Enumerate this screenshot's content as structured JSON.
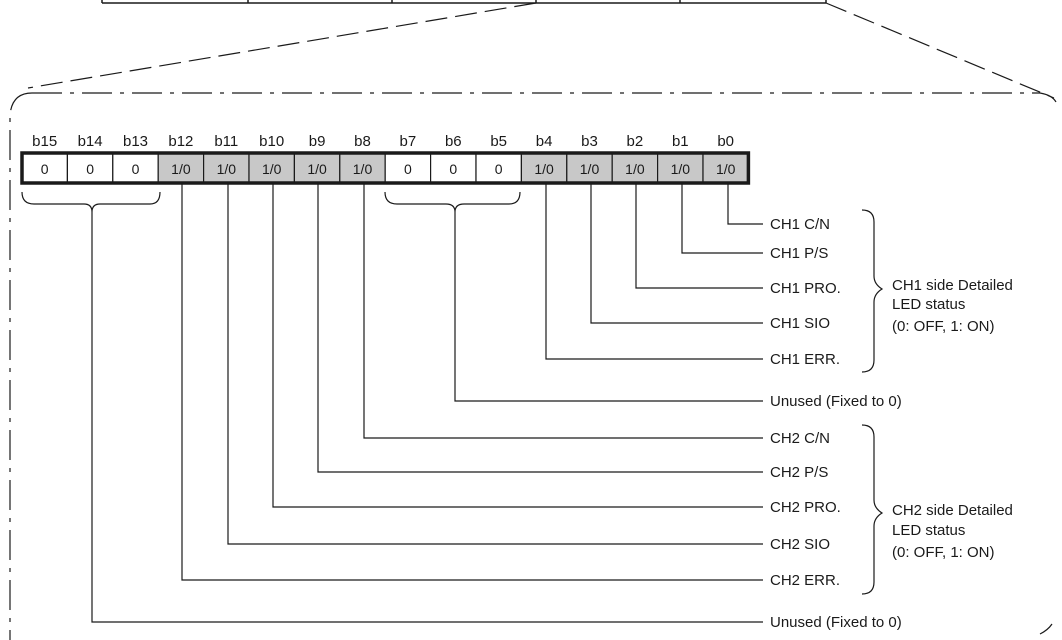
{
  "register": {
    "bits": [
      {
        "name": "b15",
        "value": "0",
        "shaded": false
      },
      {
        "name": "b14",
        "value": "0",
        "shaded": false
      },
      {
        "name": "b13",
        "value": "0",
        "shaded": false
      },
      {
        "name": "b12",
        "value": "1/0",
        "shaded": true
      },
      {
        "name": "b11",
        "value": "1/0",
        "shaded": true
      },
      {
        "name": "b10",
        "value": "1/0",
        "shaded": true
      },
      {
        "name": "b9",
        "value": "1/0",
        "shaded": true
      },
      {
        "name": "b8",
        "value": "1/0",
        "shaded": true
      },
      {
        "name": "b7",
        "value": "0",
        "shaded": false
      },
      {
        "name": "b6",
        "value": "0",
        "shaded": false
      },
      {
        "name": "b5",
        "value": "0",
        "shaded": false
      },
      {
        "name": "b4",
        "value": "1/0",
        "shaded": true
      },
      {
        "name": "b3",
        "value": "1/0",
        "shaded": true
      },
      {
        "name": "b2",
        "value": "1/0",
        "shaded": true
      },
      {
        "name": "b1",
        "value": "1/0",
        "shaded": true
      },
      {
        "name": "b0",
        "value": "1/0",
        "shaded": true
      }
    ],
    "shade_color": "#c8c8c8"
  },
  "labels": {
    "ch1_cn": "CH1 C/N",
    "ch1_ps": "CH1 P/S",
    "ch1_pro": "CH1 PRO.",
    "ch1_sio": "CH1 SIO",
    "ch1_err": "CH1 ERR.",
    "unused_upper": "Unused (Fixed to 0)",
    "ch2_cn": "CH2 C/N",
    "ch2_ps": "CH2 P/S",
    "ch2_pro": "CH2 PRO.",
    "ch2_sio": "CH2 SIO",
    "ch2_err": "CH2 ERR.",
    "unused_lower": "Unused (Fixed to 0)"
  },
  "groups": {
    "ch1": {
      "line1": "CH1 side Detailed",
      "line2": "LED status",
      "line3": "(0: OFF, 1: ON)"
    },
    "ch2": {
      "line1": "CH2 side Detailed",
      "line2": "LED status",
      "line3": "(0: OFF, 1: ON)"
    }
  }
}
